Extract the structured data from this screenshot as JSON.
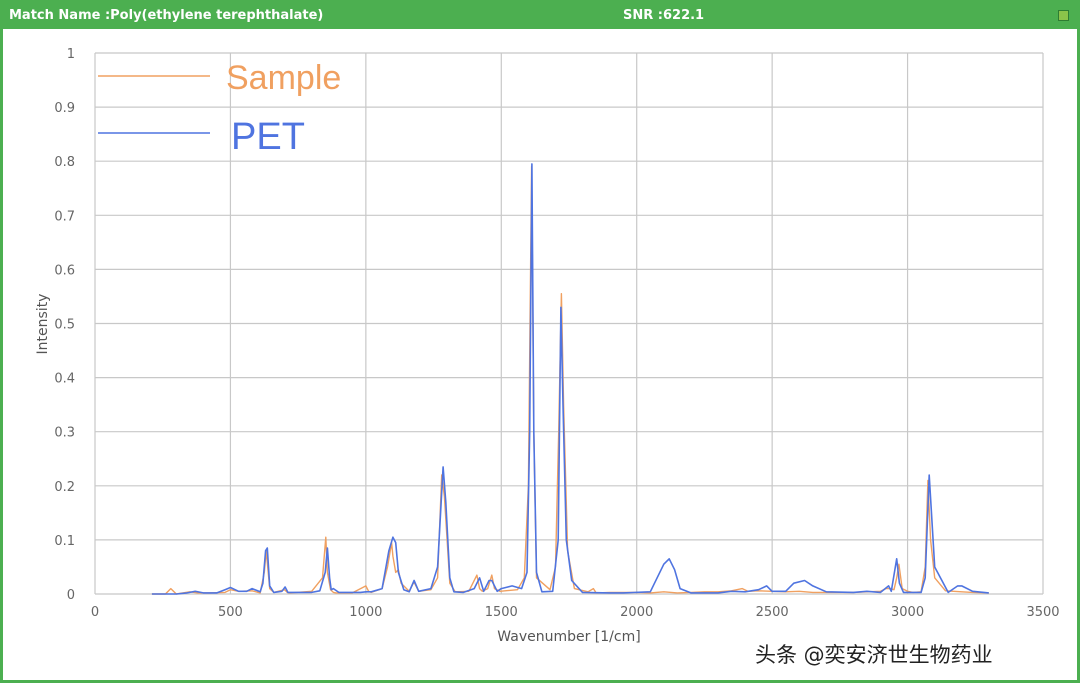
{
  "window": {
    "match_name": "Match Name :Poly(ethylene terephthalate)",
    "snr": "SNR :622.1"
  },
  "watermark": "头条 @奕安济世生物药业",
  "colors": {
    "frame": "#4caf50",
    "sample": "#f0a060",
    "pet": "#4f74e0",
    "grid": "#c8c8c8"
  },
  "chart_data": {
    "type": "line",
    "xlabel": "Wavenumber [1/cm]",
    "ylabel": "Intensity",
    "xlim": [
      0,
      3500
    ],
    "ylim": [
      0,
      1
    ],
    "x_ticks": [
      0,
      500,
      1000,
      1500,
      2000,
      2500,
      3000,
      3500
    ],
    "y_ticks": [
      0,
      0.1,
      0.2,
      0.3,
      0.4,
      0.5,
      0.6,
      0.7,
      0.8,
      0.9,
      1
    ],
    "x_tick_labels": [
      "0",
      "500",
      "1000",
      "1500",
      "2000",
      "2500",
      "3000",
      "3500"
    ],
    "y_tick_labels": [
      "0",
      "0.1",
      "0.2",
      "0.3",
      "0.4",
      "0.5",
      "0.6",
      "0.7",
      "0.8",
      "0.9",
      "1"
    ],
    "grid": true,
    "legend_position": "top-left",
    "series": [
      {
        "name": "Sample",
        "color": "#f0a060",
        "x": [
          210,
          260,
          280,
          300,
          350,
          380,
          420,
          480,
          500,
          530,
          580,
          610,
          625,
          632,
          645,
          660,
          700,
          710,
          720,
          800,
          840,
          852,
          858,
          870,
          880,
          890,
          950,
          1000,
          1010,
          1020,
          1060,
          1080,
          1095,
          1100,
          1110,
          1120,
          1130,
          1160,
          1175,
          1180,
          1195,
          1240,
          1265,
          1280,
          1290,
          1310,
          1330,
          1380,
          1410,
          1420,
          1430,
          1450,
          1465,
          1475,
          1495,
          1560,
          1585,
          1600,
          1612,
          1620,
          1630,
          1680,
          1700,
          1712,
          1722,
          1730,
          1745,
          1770,
          1820,
          1840,
          1850,
          1900,
          2000,
          2050,
          2100,
          2150,
          2200,
          2250,
          2300,
          2350,
          2390,
          2410,
          2450,
          2550,
          2600,
          2650,
          2700,
          2800,
          2850,
          2900,
          2920,
          2935,
          2950,
          2960,
          2968,
          2980,
          3000,
          3020,
          3050,
          3065,
          3075,
          3085,
          3100,
          3140,
          3200,
          3240,
          3300
        ],
        "y": [
          0,
          0,
          0.01,
          0,
          0.004,
          0.002,
          0.002,
          0.003,
          0.008,
          0.005,
          0.006,
          0.002,
          0.04,
          0.08,
          0.01,
          0.003,
          0.008,
          0.003,
          0.002,
          0.005,
          0.03,
          0.105,
          0.04,
          0.008,
          0.003,
          0.002,
          0.002,
          0.015,
          0.005,
          0.003,
          0.01,
          0.05,
          0.095,
          0.07,
          0.04,
          0.045,
          0.02,
          0.005,
          0.02,
          0.02,
          0.005,
          0.008,
          0.03,
          0.22,
          0.18,
          0.02,
          0.004,
          0.005,
          0.035,
          0.01,
          0.005,
          0.01,
          0.035,
          0.01,
          0.005,
          0.008,
          0.03,
          0.2,
          0.79,
          0.3,
          0.03,
          0.008,
          0.05,
          0.3,
          0.555,
          0.35,
          0.08,
          0.01,
          0.004,
          0.01,
          0.002,
          0.003,
          0.003,
          0.002,
          0.004,
          0.002,
          0.003,
          0.004,
          0.004,
          0.006,
          0.01,
          0.005,
          0.006,
          0.004,
          0.005,
          0.003,
          0.003,
          0.003,
          0.004,
          0.005,
          0.01,
          0.01,
          0.008,
          0.03,
          0.055,
          0.01,
          0.005,
          0.003,
          0.004,
          0.05,
          0.21,
          0.1,
          0.03,
          0.006,
          0.004,
          0.003,
          0.002
        ]
      },
      {
        "name": "PET",
        "color": "#4f74e0",
        "x": [
          210,
          300,
          340,
          370,
          400,
          450,
          480,
          500,
          530,
          560,
          580,
          610,
          620,
          630,
          636,
          645,
          660,
          690,
          702,
          712,
          800,
          830,
          850,
          858,
          866,
          872,
          880,
          900,
          980,
          1000,
          1020,
          1060,
          1085,
          1100,
          1110,
          1120,
          1140,
          1160,
          1178,
          1195,
          1240,
          1265,
          1285,
          1295,
          1310,
          1325,
          1360,
          1400,
          1420,
          1435,
          1455,
          1465,
          1485,
          1500,
          1540,
          1575,
          1595,
          1605,
          1613,
          1620,
          1630,
          1650,
          1690,
          1710,
          1720,
          1728,
          1740,
          1760,
          1800,
          1900,
          1950,
          2050,
          2100,
          2120,
          2140,
          2160,
          2200,
          2300,
          2350,
          2400,
          2450,
          2480,
          2500,
          2550,
          2580,
          2620,
          2650,
          2700,
          2800,
          2850,
          2900,
          2930,
          2940,
          2960,
          2970,
          2985,
          3050,
          3065,
          3080,
          3100,
          3150,
          3185,
          3200,
          3240,
          3300
        ],
        "y": [
          0,
          0,
          0.002,
          0.005,
          0.002,
          0.002,
          0.008,
          0.012,
          0.005,
          0.005,
          0.01,
          0.004,
          0.02,
          0.08,
          0.085,
          0.015,
          0.003,
          0.005,
          0.013,
          0.003,
          0.003,
          0.006,
          0.04,
          0.085,
          0.03,
          0.008,
          0.01,
          0.003,
          0.003,
          0.004,
          0.004,
          0.01,
          0.08,
          0.105,
          0.095,
          0.04,
          0.008,
          0.004,
          0.025,
          0.005,
          0.01,
          0.05,
          0.235,
          0.17,
          0.03,
          0.004,
          0.003,
          0.01,
          0.03,
          0.005,
          0.025,
          0.025,
          0.005,
          0.01,
          0.015,
          0.01,
          0.04,
          0.3,
          0.795,
          0.3,
          0.04,
          0.004,
          0.005,
          0.1,
          0.53,
          0.35,
          0.1,
          0.025,
          0.003,
          0.002,
          0.002,
          0.004,
          0.055,
          0.065,
          0.045,
          0.01,
          0.002,
          0.002,
          0.005,
          0.004,
          0.008,
          0.015,
          0.005,
          0.005,
          0.02,
          0.025,
          0.015,
          0.004,
          0.003,
          0.005,
          0.003,
          0.015,
          0.005,
          0.065,
          0.02,
          0.003,
          0.003,
          0.03,
          0.22,
          0.05,
          0.003,
          0.015,
          0.015,
          0.005,
          0.002
        ]
      }
    ]
  }
}
